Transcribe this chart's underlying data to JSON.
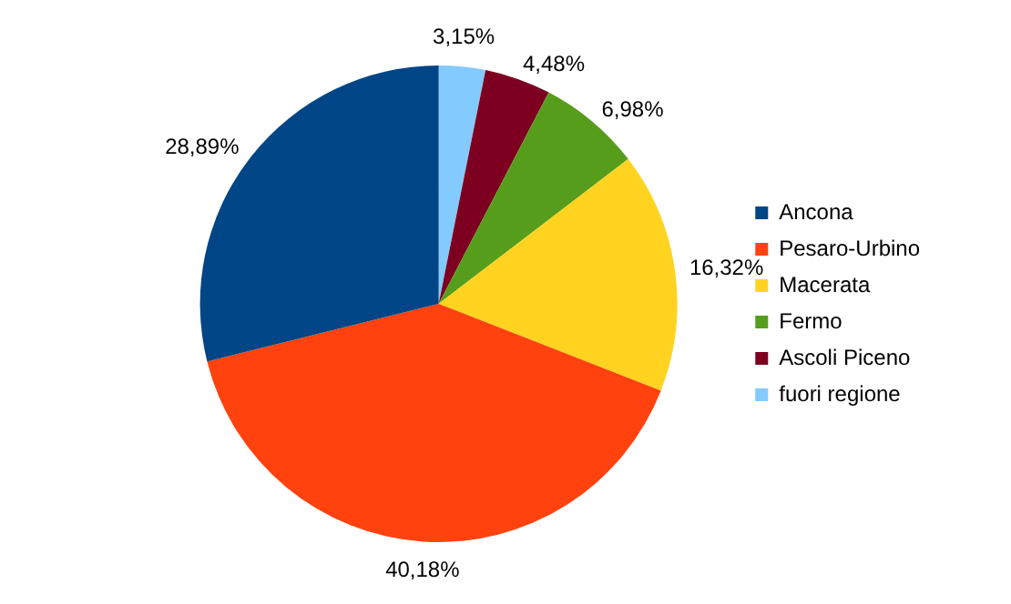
{
  "chart_data": {
    "type": "pie",
    "categories": [
      "fuori regione",
      "Ascoli Piceno",
      "Fermo",
      "Macerata",
      "Pesaro-Urbino",
      "Ancona"
    ],
    "values": [
      3.15,
      4.48,
      6.98,
      16.32,
      40.18,
      28.89
    ],
    "colors": [
      "#83caff",
      "#7e0021",
      "#579d1c",
      "#ffd320",
      "#ff420e",
      "#004586"
    ],
    "value_labels": [
      "3,15%",
      "4,48%",
      "6,98%",
      "16,32%",
      "40,18%",
      "28,89%"
    ],
    "legend": "right"
  }
}
